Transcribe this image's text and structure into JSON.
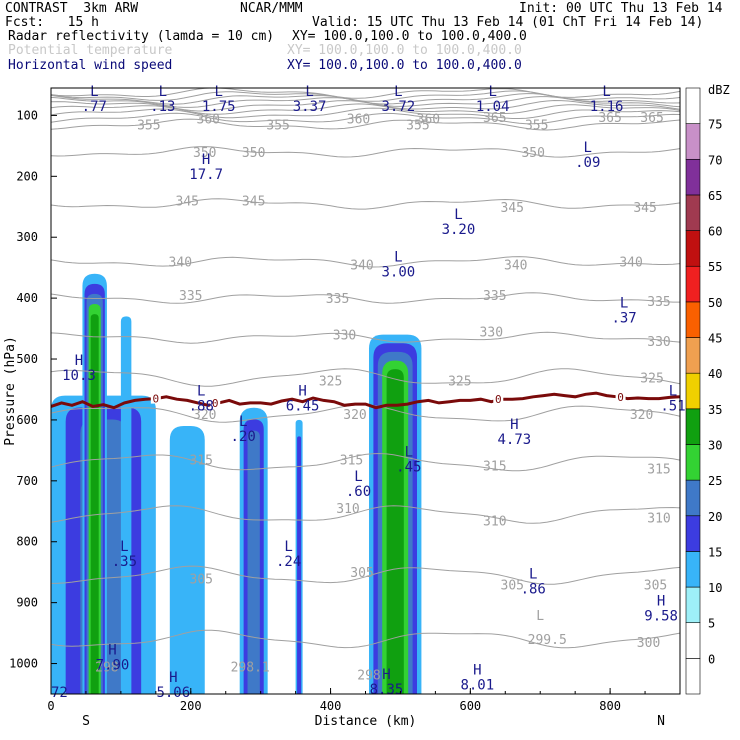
{
  "header": {
    "model": "CONTRAST  3km ARW",
    "source": "NCAR/MMM",
    "init": "Init: 00 UTC Thu 13 Feb 14",
    "fcst": "Fcst:   15 h",
    "valid": "Valid: 15 UTC Thu 13 Feb 14 (01 ChT Fri 14 Feb 14)",
    "field1": "Radar reflectivity (lamda = 10 cm)",
    "field1_xy": "XY= 100.0,100.0 to 100.0,400.0",
    "field2": "Potential temperature",
    "field2_xy": "XY= 100.0,100.0 to 100.0,400.0",
    "field3": "Horizontal wind speed",
    "field3_xy": "XY= 100.0,100.0 to 100.0,400.0"
  },
  "chart_data": {
    "type": "heatmap",
    "xlabel": "Distance (km)",
    "ylabel": "Pressure (hPa)",
    "xlim": [
      0,
      900
    ],
    "x_ticks": [
      0,
      200,
      400,
      600,
      800
    ],
    "ylim": [
      1050,
      55
    ],
    "y_ticks": [
      100,
      200,
      300,
      400,
      500,
      600,
      700,
      800,
      900,
      1000
    ],
    "left_end": "S",
    "right_end": "N",
    "colorbar": {
      "unit": "dBZ",
      "levels": [
        0,
        5,
        10,
        15,
        20,
        25,
        30,
        35,
        40,
        45,
        50,
        55,
        60,
        65,
        70,
        75
      ],
      "colors": [
        "#ffffff",
        "#ffffff",
        "#9ef0f8",
        "#38b4f8",
        "#3c3ce0",
        "#3f79c8",
        "#33d233",
        "#10a010",
        "#f0d000",
        "#f0a050",
        "#fa6000",
        "#f02020",
        "#c01010",
        "#a03a50",
        "#80309a",
        "#c890c8",
        "#ffffff"
      ]
    },
    "reflectivity_cells": [
      {
        "x": [
          0,
          150
        ],
        "top_p": 560,
        "max_dbz": 20
      },
      {
        "x": [
          45,
          80
        ],
        "top_p": 360,
        "max_dbz": 30
      },
      {
        "x": [
          100,
          115
        ],
        "top_p": 430,
        "max_dbz": 10
      },
      {
        "x": [
          170,
          220
        ],
        "top_p": 610,
        "max_dbz": 10
      },
      {
        "x": [
          270,
          310
        ],
        "top_p": 580,
        "max_dbz": 20
      },
      {
        "x": [
          350,
          360
        ],
        "top_p": 600,
        "max_dbz": 15
      },
      {
        "x": [
          455,
          530
        ],
        "top_p": 460,
        "max_dbz": 30
      }
    ],
    "theta_contours": {
      "color": "#a0a0a0",
      "levels": [
        299.5,
        300,
        305,
        310,
        315,
        320,
        325,
        330,
        335,
        340,
        345,
        350,
        355,
        360,
        365
      ],
      "labels": [
        {
          "text": "355",
          "x": 140,
          "p": 115
        },
        {
          "text": "360",
          "x": 225,
          "p": 105
        },
        {
          "text": "355",
          "x": 325,
          "p": 115
        },
        {
          "text": "355",
          "x": 525,
          "p": 115
        },
        {
          "text": "360",
          "x": 540,
          "p": 105
        },
        {
          "text": "365",
          "x": 635,
          "p": 103
        },
        {
          "text": "360",
          "x": 440,
          "p": 105
        },
        {
          "text": "365",
          "x": 860,
          "p": 103
        },
        {
          "text": "365",
          "x": 800,
          "p": 103
        },
        {
          "text": "355",
          "x": 695,
          "p": 115
        },
        {
          "text": "350",
          "x": 220,
          "p": 160
        },
        {
          "text": "350",
          "x": 290,
          "p": 160
        },
        {
          "text": "350",
          "x": 690,
          "p": 160
        },
        {
          "text": "345",
          "x": 195,
          "p": 240
        },
        {
          "text": "345",
          "x": 290,
          "p": 240
        },
        {
          "text": "345",
          "x": 660,
          "p": 250
        },
        {
          "text": "345",
          "x": 850,
          "p": 250
        },
        {
          "text": "340",
          "x": 185,
          "p": 340
        },
        {
          "text": "340",
          "x": 445,
          "p": 345
        },
        {
          "text": "340",
          "x": 665,
          "p": 345
        },
        {
          "text": "340",
          "x": 830,
          "p": 340
        },
        {
          "text": "335",
          "x": 200,
          "p": 395
        },
        {
          "text": "335",
          "x": 410,
          "p": 400
        },
        {
          "text": "335",
          "x": 635,
          "p": 395
        },
        {
          "text": "335",
          "x": 870,
          "p": 405
        },
        {
          "text": "330",
          "x": 420,
          "p": 460
        },
        {
          "text": "330",
          "x": 630,
          "p": 455
        },
        {
          "text": "330",
          "x": 870,
          "p": 470
        },
        {
          "text": "325",
          "x": 400,
          "p": 535
        },
        {
          "text": "325",
          "x": 585,
          "p": 535
        },
        {
          "text": "325",
          "x": 860,
          "p": 530
        },
        {
          "text": "320",
          "x": 220,
          "p": 590
        },
        {
          "text": "320",
          "x": 435,
          "p": 590
        },
        {
          "text": "320",
          "x": 845,
          "p": 590
        },
        {
          "text": "315",
          "x": 215,
          "p": 665
        },
        {
          "text": "315",
          "x": 430,
          "p": 665
        },
        {
          "text": "315",
          "x": 635,
          "p": 675
        },
        {
          "text": "315",
          "x": 870,
          "p": 680
        },
        {
          "text": "310",
          "x": 425,
          "p": 745
        },
        {
          "text": "310",
          "x": 635,
          "p": 765
        },
        {
          "text": "310",
          "x": 870,
          "p": 760
        },
        {
          "text": "305",
          "x": 215,
          "p": 860
        },
        {
          "text": "305",
          "x": 445,
          "p": 850
        },
        {
          "text": "305",
          "x": 660,
          "p": 870
        },
        {
          "text": "305",
          "x": 865,
          "p": 870
        },
        {
          "text": "300",
          "x": 855,
          "p": 965
        },
        {
          "text": "299.5",
          "x": 710,
          "p": 960
        },
        {
          "text": "L",
          "x": 700,
          "p": 920
        },
        {
          "text": "298",
          "x": 80,
          "p": 1005
        },
        {
          "text": "298.1",
          "x": 285,
          "p": 1005
        },
        {
          "text": "298",
          "x": 455,
          "p": 1018
        }
      ]
    },
    "freezing_line": {
      "color": "#7a0a0a",
      "label": "0",
      "x": [
        0,
        15,
        30,
        45,
        60,
        75,
        90,
        105,
        120,
        135,
        150,
        165,
        180,
        195,
        210,
        225,
        240,
        255,
        270,
        285,
        300,
        315,
        330,
        345,
        360,
        375,
        390,
        405,
        420,
        435,
        450,
        465,
        480,
        495,
        510,
        525,
        540,
        555,
        570,
        585,
        600,
        615,
        630,
        645,
        660,
        675,
        690,
        705,
        720,
        735,
        750,
        765,
        780,
        795,
        810,
        825,
        840,
        855,
        870,
        885,
        900
      ],
      "p": [
        578,
        572,
        576,
        570,
        578,
        575,
        580,
        572,
        568,
        566,
        565,
        562,
        566,
        568,
        572,
        576,
        572,
        568,
        574,
        572,
        572,
        574,
        569,
        566,
        570,
        564,
        568,
        570,
        576,
        574,
        574,
        580,
        576,
        576,
        574,
        570,
        568,
        572,
        570,
        568,
        568,
        566,
        570,
        566,
        566,
        565,
        562,
        560,
        558,
        560,
        562,
        558,
        556,
        560,
        562,
        565,
        564,
        565,
        565,
        563,
        562
      ],
      "labels_x": [
        150,
        235,
        640,
        815
      ]
    },
    "wind_markers": [
      {
        "kind": "L",
        "value": ".77",
        "x": 62,
        "p": 55
      },
      {
        "kind": "L",
        "value": ".13",
        "x": 160,
        "p": 55
      },
      {
        "kind": "L",
        "value": "1.75",
        "x": 240,
        "p": 55
      },
      {
        "kind": "L",
        "value": "3.37",
        "x": 370,
        "p": 55
      },
      {
        "kind": "L",
        "value": "3.72",
        "x": 497,
        "p": 55
      },
      {
        "kind": "L",
        "value": "1.04",
        "x": 632,
        "p": 55
      },
      {
        "kind": "L",
        "value": "1.16",
        "x": 795,
        "p": 55
      },
      {
        "kind": "L",
        "value": ".09",
        "x": 768,
        "p": 160
      },
      {
        "kind": "H",
        "value": "17.7",
        "x": 222,
        "p": 180
      },
      {
        "kind": "L",
        "value": "3.20",
        "x": 583,
        "p": 270
      },
      {
        "kind": "L",
        "value": "3.00",
        "x": 497,
        "p": 340
      },
      {
        "kind": "L",
        "value": ".37",
        "x": 820,
        "p": 415
      },
      {
        "kind": "H",
        "value": "10.3",
        "x": 40,
        "p": 510
      },
      {
        "kind": "L",
        "value": ".88",
        "x": 215,
        "p": 560
      },
      {
        "kind": "H",
        "value": "6.45",
        "x": 360,
        "p": 560
      },
      {
        "kind": "L",
        "value": ".51",
        "x": 890,
        "p": 560
      },
      {
        "kind": "L",
        "value": ".20",
        "x": 275,
        "p": 610
      },
      {
        "kind": "H",
        "value": "4.73",
        "x": 663,
        "p": 615
      },
      {
        "kind": "L",
        "value": ".45",
        "x": 512,
        "p": 660
      },
      {
        "kind": "L",
        "value": ".60",
        "x": 440,
        "p": 700
      },
      {
        "kind": "L",
        "value": ".35",
        "x": 105,
        "p": 815
      },
      {
        "kind": "L",
        "value": ".24",
        "x": 340,
        "p": 815
      },
      {
        "kind": "L",
        "value": ".86",
        "x": 690,
        "p": 860
      },
      {
        "kind": "H",
        "value": "9.58",
        "x": 873,
        "p": 905
      },
      {
        "kind": "H",
        "value": "7.90",
        "x": 88,
        "p": 985
      },
      {
        "kind": "H",
        "value": "5.06",
        "x": 175,
        "p": 1030
      },
      {
        "kind": "H",
        "value": "8.35",
        "x": 480,
        "p": 1025
      },
      {
        "kind": "H",
        "value": "8.01",
        "x": 610,
        "p": 1018
      },
      {
        "kind": "",
        "value": "72",
        "x": 12,
        "p": 1030
      }
    ]
  }
}
